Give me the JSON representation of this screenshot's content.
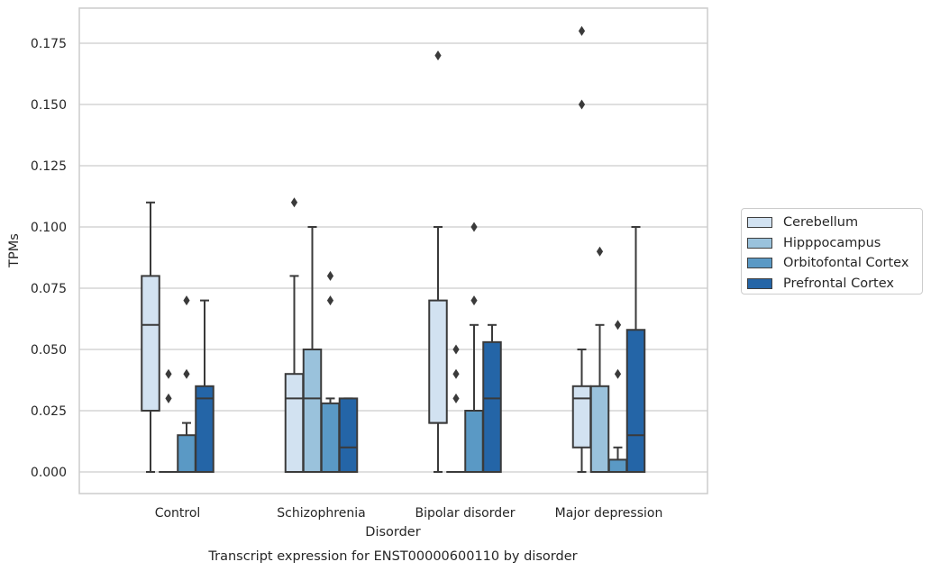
{
  "chart_data": {
    "type": "box",
    "title": "",
    "xlabel": "Disorder",
    "ylabel": "TPMs",
    "caption": "Transcript expression for ENST00000600110 by disorder",
    "ylim": [
      -0.0175,
      0.1875
    ],
    "yticks": [
      "0.000",
      "0.025",
      "0.050",
      "0.075",
      "0.100",
      "0.125",
      "0.150",
      "0.175"
    ],
    "grid": "horizontal",
    "legend_position": "right",
    "categories": [
      "Control",
      "Schizophrenia",
      "Bipolar disorder",
      "Major depression"
    ],
    "series": [
      {
        "name": "Cerebellum",
        "color": "#d2e2f1",
        "boxes": [
          {
            "whislo": 0.0,
            "q1": 0.025,
            "med": 0.06,
            "q3": 0.08,
            "whishi": 0.11,
            "fliers": []
          },
          {
            "whislo": 0.0,
            "q1": 0.0,
            "med": 0.03,
            "q3": 0.04,
            "whishi": 0.08,
            "fliers": [
              0.11
            ]
          },
          {
            "whislo": 0.0,
            "q1": 0.02,
            "med": 0.02,
            "q3": 0.07,
            "whishi": 0.1,
            "fliers": [
              0.17
            ]
          },
          {
            "whislo": 0.0,
            "q1": 0.01,
            "med": 0.03,
            "q3": 0.035,
            "whishi": 0.05,
            "fliers": [
              0.15,
              0.18
            ]
          }
        ]
      },
      {
        "name": "Hipppocampus",
        "color": "#9ac2dc",
        "boxes": [
          {
            "whislo": 0.0,
            "q1": 0.0,
            "med": 0.0,
            "q3": 0.0,
            "whishi": 0.0,
            "fliers": [
              0.03,
              0.04
            ]
          },
          {
            "whislo": 0.0,
            "q1": 0.0,
            "med": 0.03,
            "q3": 0.05,
            "whishi": 0.1,
            "fliers": []
          },
          {
            "whislo": 0.0,
            "q1": 0.0,
            "med": 0.0,
            "q3": 0.0,
            "whishi": 0.0,
            "fliers": [
              0.03,
              0.04,
              0.05
            ]
          },
          {
            "whislo": 0.0,
            "q1": 0.0,
            "med": 0.0,
            "q3": 0.035,
            "whishi": 0.06,
            "fliers": [
              0.09
            ]
          }
        ]
      },
      {
        "name": "Orbitofontal Cortex",
        "color": "#5a99c5",
        "boxes": [
          {
            "whislo": 0.0,
            "q1": 0.0,
            "med": 0.0,
            "q3": 0.015,
            "whishi": 0.02,
            "fliers": [
              0.04,
              0.07
            ]
          },
          {
            "whislo": 0.0,
            "q1": 0.0,
            "med": 0.0,
            "q3": 0.028,
            "whishi": 0.03,
            "fliers": [
              0.07,
              0.08
            ]
          },
          {
            "whislo": 0.0,
            "q1": 0.0,
            "med": 0.0,
            "q3": 0.025,
            "whishi": 0.06,
            "fliers": [
              0.07,
              0.1
            ]
          },
          {
            "whislo": 0.0,
            "q1": 0.0,
            "med": 0.0,
            "q3": 0.005,
            "whishi": 0.01,
            "fliers": [
              0.04,
              0.06
            ]
          }
        ]
      },
      {
        "name": "Prefrontal Cortex",
        "color": "#2465a7",
        "boxes": [
          {
            "whislo": 0.0,
            "q1": 0.0,
            "med": 0.03,
            "q3": 0.035,
            "whishi": 0.07,
            "fliers": []
          },
          {
            "whislo": 0.0,
            "q1": 0.0,
            "med": 0.01,
            "q3": 0.03,
            "whishi": 0.03,
            "fliers": []
          },
          {
            "whislo": 0.0,
            "q1": 0.0,
            "med": 0.03,
            "q3": 0.053,
            "whishi": 0.06,
            "fliers": []
          },
          {
            "whislo": 0.0,
            "q1": 0.0,
            "med": 0.015,
            "q3": 0.058,
            "whishi": 0.1,
            "fliers": []
          }
        ]
      }
    ]
  }
}
